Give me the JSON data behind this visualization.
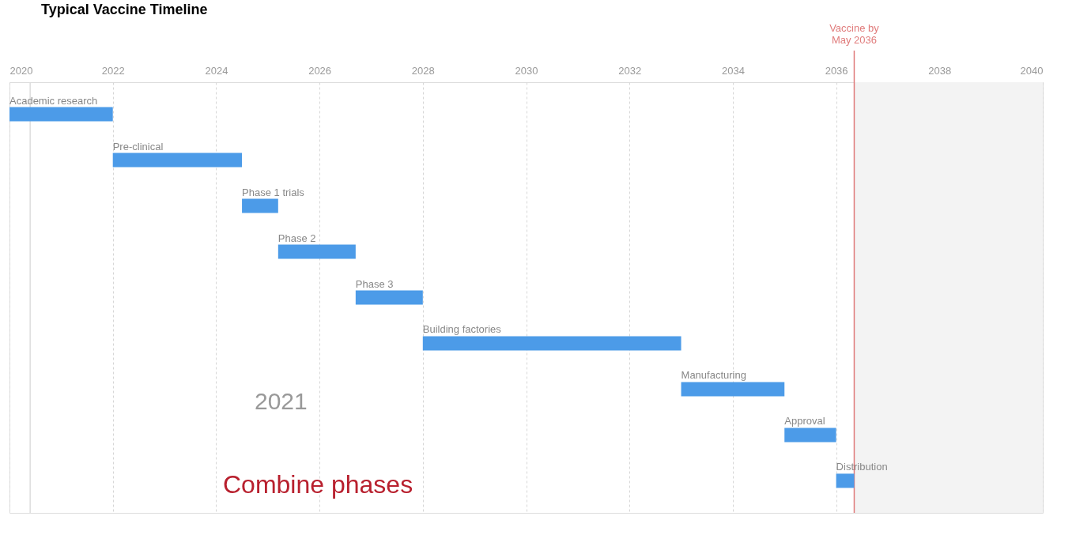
{
  "chart_data": {
    "type": "bar",
    "orientation": "horizontal",
    "title": "Typical Vaccine Timeline",
    "categories": [
      "Academic research",
      "Pre-clinical",
      "Phase 1 trials",
      "Phase 2",
      "Phase 3",
      "Building factories",
      "Manufacturing",
      "Approval",
      "Distribution"
    ],
    "base": [
      2020,
      2022,
      2024.5,
      2025.2,
      2026.7,
      2028,
      2033,
      2035,
      2036
    ],
    "values": [
      2,
      2.5,
      0.7,
      1.5,
      1.3,
      5,
      2,
      1,
      0.35
    ],
    "color": "#4c9be8",
    "xlim": [
      2020,
      2040
    ],
    "xticks": [
      2020,
      2022,
      2024,
      2026,
      2028,
      2030,
      2032,
      2034,
      2036,
      2038,
      2040
    ],
    "grid": "x",
    "ref_lines": [
      {
        "axis": "x",
        "value": 2036.35,
        "label": "Vaccine by\nMay 2036",
        "color": "#e07b7b"
      },
      {
        "axis": "x",
        "value": 2020.4,
        "color": "#dddddd"
      }
    ],
    "bands": [
      {
        "axis": "x",
        "from": 2036.35,
        "to": 2040,
        "color": "#f3f3f3"
      }
    ],
    "annotations": [
      "2021",
      "Combine phases"
    ]
  }
}
